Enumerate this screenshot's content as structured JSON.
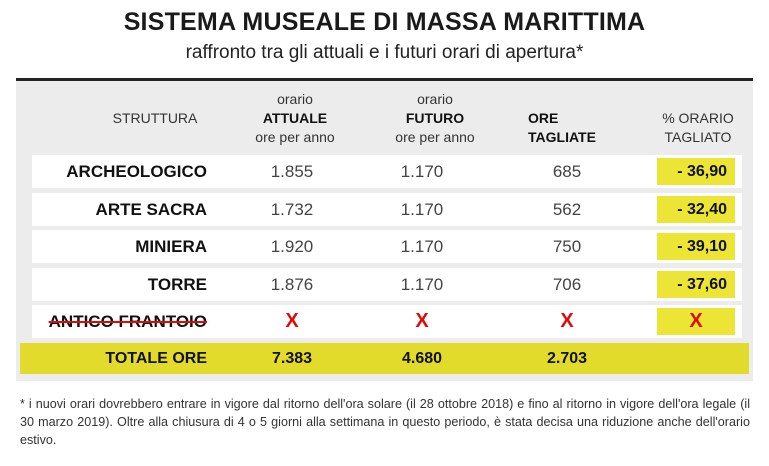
{
  "title": "SISTEMA MUSEALE DI MASSA MARITTIMA",
  "subtitle": "raffronto tra gli attuali e i futuri orari di apertura*",
  "headers": {
    "struttura": "STRUTTURA",
    "attuale_l1": "orario",
    "attuale_l2": "ATTUALE",
    "attuale_l3": "ore per anno",
    "futuro_l1": "orario",
    "futuro_l2": "FUTURO",
    "futuro_l3": "ore per anno",
    "tagliate_l1": "ORE",
    "tagliate_l2": "TAGLIATE",
    "pct_l1": "% ORARIO",
    "pct_l2": "TAGLIATO"
  },
  "rows": [
    {
      "name": "ARCHEOLOGICO",
      "attuale": "1.855",
      "futuro": "1.170",
      "tagliate": "685",
      "pct": "- 36,90"
    },
    {
      "name": "ARTE SACRA",
      "attuale": "1.732",
      "futuro": "1.170",
      "tagliate": "562",
      "pct": "- 32,40"
    },
    {
      "name": "MINIERA",
      "attuale": "1.920",
      "futuro": "1.170",
      "tagliate": "750",
      "pct": "- 39,10"
    },
    {
      "name": "TORRE",
      "attuale": "1.876",
      "futuro": "1.170",
      "tagliate": "706",
      "pct": "- 37,60"
    },
    {
      "name": "ANTICO FRANTOIO",
      "attuale": "X",
      "futuro": "X",
      "tagliate": "X",
      "pct": "X"
    }
  ],
  "total": {
    "label": "TOTALE ORE",
    "attuale": "7.383",
    "futuro": "4.680",
    "tagliate": "2.703"
  },
  "footnote": "* i nuovi orari dovrebbero entrare in vigore dal ritorno dell'ora solare (il 28 ottobre 2018) e fino al ritorno in vigore dell'ora legale (il 30 marzo 2019). Oltre alla chiusura di 4 o 5 giorni alla settimana in questo periodo, è stata decisa una riduzione anche dell'orario estivo."
}
